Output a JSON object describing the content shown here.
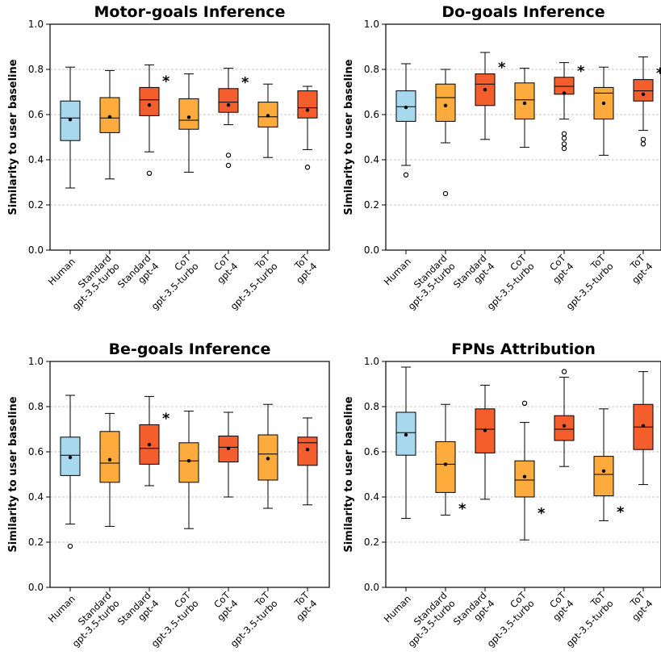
{
  "colors": {
    "human": "#a7d8ee",
    "gpt35": "#fdab3d",
    "gpt4": "#f35e2c",
    "grid": "#b8b8b8",
    "line": "#000000"
  },
  "chart_data": [
    {
      "type": "box",
      "title": "Motor-goals Inference",
      "ylabel": "Similarity to user baseline",
      "ylim": [
        0.0,
        1.0
      ],
      "yticks": [
        "0.0",
        "0.2",
        "0.4",
        "0.6",
        "0.8",
        "1.0"
      ],
      "grid": "horizontal dashed",
      "categories": [
        "Human",
        "Standard\ngpt-3.5-turbo",
        "Standard\ngpt-4",
        "CoT\ngpt-3.5-turbo",
        "CoT\ngpt-4",
        "ToT\ngpt-3.5-turbo",
        "ToT\ngpt-4"
      ],
      "groups": [
        "human",
        "gpt35",
        "gpt4",
        "gpt35",
        "gpt4",
        "gpt35",
        "gpt4"
      ],
      "boxes": [
        {
          "whislo": 0.275,
          "q1": 0.485,
          "med": 0.585,
          "q3": 0.66,
          "whishi": 0.81,
          "mean": 0.578,
          "fliers": [],
          "star": false
        },
        {
          "whislo": 0.315,
          "q1": 0.52,
          "med": 0.585,
          "q3": 0.675,
          "whishi": 0.795,
          "mean": 0.59,
          "fliers": [],
          "star": false
        },
        {
          "whislo": 0.435,
          "q1": 0.595,
          "med": 0.665,
          "q3": 0.72,
          "whishi": 0.82,
          "mean": 0.642,
          "fliers": [
            0.34
          ],
          "star": true
        },
        {
          "whislo": 0.345,
          "q1": 0.535,
          "med": 0.575,
          "q3": 0.67,
          "whishi": 0.78,
          "mean": 0.588,
          "fliers": [],
          "star": false
        },
        {
          "whislo": 0.555,
          "q1": 0.61,
          "med": 0.655,
          "q3": 0.715,
          "whishi": 0.805,
          "mean": 0.642,
          "fliers": [
            0.42,
            0.375
          ],
          "star": true
        },
        {
          "whislo": 0.41,
          "q1": 0.545,
          "med": 0.59,
          "q3": 0.655,
          "whishi": 0.735,
          "mean": 0.595,
          "fliers": [],
          "star": false
        },
        {
          "whislo": 0.445,
          "q1": 0.585,
          "med": 0.63,
          "q3": 0.705,
          "whishi": 0.725,
          "mean": 0.62,
          "fliers": [
            0.367
          ],
          "star": false
        }
      ]
    },
    {
      "type": "box",
      "title": "Do-goals Inference",
      "ylabel": "Similarity to user baseline",
      "ylim": [
        0.0,
        1.0
      ],
      "yticks": [
        "0.0",
        "0.2",
        "0.4",
        "0.6",
        "0.8",
        "1.0"
      ],
      "grid": "horizontal dashed",
      "categories": [
        "Human",
        "Standard\ngpt-3.5-turbo",
        "Standard\ngpt-4",
        "CoT\ngpt-3.5-turbo",
        "CoT\ngpt-4",
        "ToT\ngpt-3.5-turbo",
        "ToT\ngpt-4"
      ],
      "groups": [
        "human",
        "gpt35",
        "gpt4",
        "gpt35",
        "gpt4",
        "gpt35",
        "gpt4"
      ],
      "boxes": [
        {
          "whislo": 0.375,
          "q1": 0.57,
          "med": 0.635,
          "q3": 0.705,
          "whishi": 0.825,
          "mean": 0.632,
          "fliers": [
            0.333
          ],
          "star": false
        },
        {
          "whislo": 0.475,
          "q1": 0.57,
          "med": 0.675,
          "q3": 0.735,
          "whishi": 0.8,
          "mean": 0.64,
          "fliers": [
            0.25
          ],
          "star": false
        },
        {
          "whislo": 0.49,
          "q1": 0.64,
          "med": 0.735,
          "q3": 0.78,
          "whishi": 0.875,
          "mean": 0.71,
          "fliers": [],
          "star": true
        },
        {
          "whislo": 0.455,
          "q1": 0.58,
          "med": 0.665,
          "q3": 0.74,
          "whishi": 0.805,
          "mean": 0.65,
          "fliers": [],
          "star": false
        },
        {
          "whislo": 0.58,
          "q1": 0.69,
          "med": 0.725,
          "q3": 0.765,
          "whishi": 0.83,
          "mean": 0.695,
          "fliers": [
            0.515,
            0.495,
            0.47,
            0.45
          ],
          "star": true
        },
        {
          "whislo": 0.42,
          "q1": 0.58,
          "med": 0.695,
          "q3": 0.72,
          "whishi": 0.81,
          "mean": 0.65,
          "fliers": [],
          "star": false
        },
        {
          "whislo": 0.53,
          "q1": 0.66,
          "med": 0.705,
          "q3": 0.755,
          "whishi": 0.855,
          "mean": 0.69,
          "fliers": [
            0.49,
            0.47
          ],
          "star": true
        }
      ]
    },
    {
      "type": "box",
      "title": "Be-goals Inference",
      "ylabel": "Similarity to user baseline",
      "ylim": [
        0.0,
        1.0
      ],
      "yticks": [
        "0.0",
        "0.2",
        "0.4",
        "0.6",
        "0.8",
        "1.0"
      ],
      "grid": "horizontal dashed",
      "categories": [
        "Human",
        "Standard\ngpt-3.5-turbo",
        "Standard\ngpt-4",
        "CoT\ngpt-3.5-turbo",
        "CoT\ngpt-4",
        "ToT\ngpt-3.5-turbo",
        "ToT\ngpt-4"
      ],
      "groups": [
        "human",
        "gpt35",
        "gpt4",
        "gpt35",
        "gpt4",
        "gpt35",
        "gpt4"
      ],
      "boxes": [
        {
          "whislo": 0.28,
          "q1": 0.495,
          "med": 0.585,
          "q3": 0.665,
          "whishi": 0.85,
          "mean": 0.575,
          "fliers": [
            0.182
          ],
          "star": false
        },
        {
          "whislo": 0.27,
          "q1": 0.465,
          "med": 0.55,
          "q3": 0.69,
          "whishi": 0.77,
          "mean": 0.565,
          "fliers": [],
          "star": false
        },
        {
          "whislo": 0.45,
          "q1": 0.545,
          "med": 0.615,
          "q3": 0.72,
          "whishi": 0.845,
          "mean": 0.632,
          "fliers": [],
          "star": true
        },
        {
          "whislo": 0.26,
          "q1": 0.465,
          "med": 0.56,
          "q3": 0.64,
          "whishi": 0.78,
          "mean": 0.56,
          "fliers": [],
          "star": false
        },
        {
          "whislo": 0.4,
          "q1": 0.555,
          "med": 0.62,
          "q3": 0.67,
          "whishi": 0.775,
          "mean": 0.615,
          "fliers": [],
          "star": false
        },
        {
          "whislo": 0.35,
          "q1": 0.475,
          "med": 0.59,
          "q3": 0.675,
          "whishi": 0.81,
          "mean": 0.57,
          "fliers": [],
          "star": false
        },
        {
          "whislo": 0.365,
          "q1": 0.54,
          "med": 0.64,
          "q3": 0.665,
          "whishi": 0.75,
          "mean": 0.61,
          "fliers": [],
          "star": false
        }
      ]
    },
    {
      "type": "box",
      "title": "FPNs Attribution",
      "ylabel": "Similarity to user baseline",
      "ylim": [
        0.0,
        1.0
      ],
      "yticks": [
        "0.0",
        "0.2",
        "0.4",
        "0.6",
        "0.8",
        "1.0"
      ],
      "grid": "horizontal dashed",
      "categories": [
        "Human",
        "Standard\ngpt-3.5-turbo",
        "Standard\ngpt-4",
        "CoT\ngpt-3.5-turbo",
        "CoT\ngpt-4",
        "ToT\ngpt-3.5-turbo",
        "ToT\ngpt-4"
      ],
      "groups": [
        "human",
        "gpt35",
        "gpt4",
        "gpt35",
        "gpt4",
        "gpt35",
        "gpt4"
      ],
      "boxes": [
        {
          "whislo": 0.305,
          "q1": 0.585,
          "med": 0.685,
          "q3": 0.775,
          "whishi": 0.975,
          "mean": 0.675,
          "fliers": [],
          "star": false
        },
        {
          "whislo": 0.32,
          "q1": 0.42,
          "med": 0.545,
          "q3": 0.645,
          "whishi": 0.81,
          "mean": 0.545,
          "fliers": [],
          "star": true
        },
        {
          "whislo": 0.39,
          "q1": 0.595,
          "med": 0.7,
          "q3": 0.79,
          "whishi": 0.895,
          "mean": 0.695,
          "fliers": [],
          "star": false
        },
        {
          "whislo": 0.21,
          "q1": 0.4,
          "med": 0.475,
          "q3": 0.56,
          "whishi": 0.73,
          "mean": 0.49,
          "fliers": [
            0.815
          ],
          "star": true
        },
        {
          "whislo": 0.535,
          "q1": 0.65,
          "med": 0.7,
          "q3": 0.76,
          "whishi": 0.93,
          "mean": 0.715,
          "fliers": [
            0.955
          ],
          "star": false
        },
        {
          "whislo": 0.295,
          "q1": 0.405,
          "med": 0.5,
          "q3": 0.58,
          "whishi": 0.79,
          "mean": 0.515,
          "fliers": [],
          "star": true
        },
        {
          "whislo": 0.455,
          "q1": 0.61,
          "med": 0.71,
          "q3": 0.81,
          "whishi": 0.955,
          "mean": 0.715,
          "fliers": [],
          "star": false
        }
      ]
    }
  ]
}
